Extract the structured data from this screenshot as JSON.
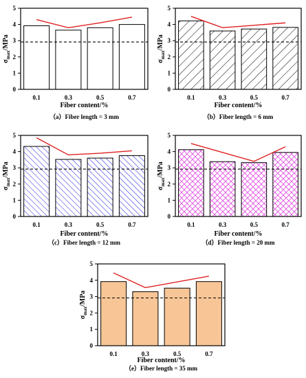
{
  "figure": {
    "ylabel_prefix": "σ",
    "ylabel_sub": "max",
    "ylabel_suffix": "/MPa"
  },
  "chart_data": [
    {
      "type": "bar",
      "panel": "a",
      "caption": "（a）Fiber length = 3 mm",
      "xlabel": "Fiber content/%",
      "ylabel": "σmax/MPa",
      "categories": [
        "0.1",
        "0.3",
        "0.5",
        "0.7"
      ],
      "values": [
        3.92,
        3.65,
        3.8,
        4.0
      ],
      "trend_line": [
        4.3,
        3.8,
        4.1,
        4.45
      ],
      "reference_value": 2.92,
      "ylim": [
        0,
        5
      ],
      "yticks": [
        "0",
        "1",
        "2",
        "3",
        "4",
        "5"
      ],
      "bar_fill": "#ffffff",
      "pattern": "none",
      "pattern_color": "#000000",
      "trend_color": "#e02020"
    },
    {
      "type": "bar",
      "panel": "b",
      "caption": "（b）Fiber length = 6 mm",
      "xlabel": "Fiber content/%",
      "ylabel": "σmax/MPa",
      "categories": [
        "0.1",
        "0.3",
        "0.5",
        "0.7"
      ],
      "values": [
        4.22,
        3.6,
        3.72,
        3.82
      ],
      "trend_line": [
        4.5,
        3.8,
        3.95,
        4.1
      ],
      "reference_value": 2.92,
      "ylim": [
        0,
        5
      ],
      "yticks": [
        "0",
        "1",
        "2",
        "3",
        "4",
        "5"
      ],
      "bar_fill": "#ffffff",
      "pattern": "forward-diagonal",
      "pattern_color": "#000000",
      "trend_color": "#e02020"
    },
    {
      "type": "bar",
      "panel": "c",
      "caption": "（c）Fiber length = 12 mm",
      "xlabel": "Fiber content/%",
      "ylabel": "σmax/MPa",
      "categories": [
        "0.1",
        "0.3",
        "0.5",
        "0.7"
      ],
      "values": [
        4.32,
        3.52,
        3.6,
        3.75
      ],
      "trend_line": [
        4.85,
        3.8,
        3.9,
        4.05
      ],
      "reference_value": 2.92,
      "ylim": [
        0,
        5
      ],
      "yticks": [
        "0",
        "1",
        "2",
        "3",
        "4",
        "5"
      ],
      "bar_fill": "#ffffff",
      "pattern": "back-diagonal",
      "pattern_color": "#1a1adf",
      "trend_color": "#e02020"
    },
    {
      "type": "bar",
      "panel": "d",
      "caption": "（d）Fiber length = 20 mm",
      "xlabel": "Fiber content/%",
      "ylabel": "σmax/MPa",
      "categories": [
        "0.1",
        "0.3",
        "0.5",
        "0.7"
      ],
      "values": [
        4.12,
        3.38,
        3.32,
        3.95
      ],
      "trend_line": [
        4.5,
        3.95,
        3.4,
        4.3
      ],
      "reference_value": 2.92,
      "ylim": [
        0,
        5
      ],
      "yticks": [
        "0",
        "1",
        "2",
        "3",
        "4",
        "5"
      ],
      "bar_fill": "#ffffff",
      "pattern": "crosshatch",
      "pattern_color": "#e048e0",
      "trend_color": "#e02020"
    },
    {
      "type": "bar",
      "panel": "e",
      "caption": "（e）Fiber length = 35 mm",
      "xlabel": "Fiber content/%",
      "ylabel": "σmax/MPa",
      "categories": [
        "0.1",
        "0.3",
        "0.5",
        "0.7"
      ],
      "values": [
        3.92,
        3.3,
        3.52,
        3.92
      ],
      "trend_line": [
        4.45,
        3.55,
        3.9,
        4.25
      ],
      "reference_value": 2.92,
      "ylim": [
        0,
        5
      ],
      "yticks": [
        "0",
        "1",
        "2",
        "3",
        "4",
        "5"
      ],
      "bar_fill": "#f7c596",
      "pattern": "none",
      "pattern_color": "#000000",
      "trend_color": "#e02020"
    }
  ]
}
